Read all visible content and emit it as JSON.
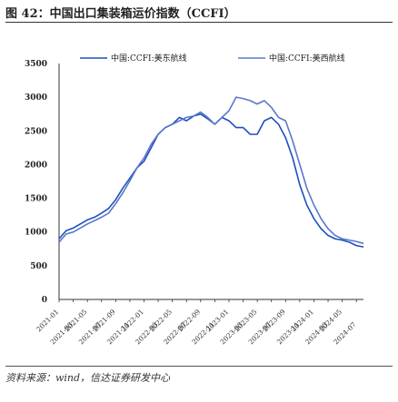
{
  "figure": {
    "title": "图 42：中国出口集装箱运价指数（CCFI）",
    "source": "资料来源：wind，信达证券研发中心"
  },
  "chart_data": {
    "type": "line",
    "title": "",
    "xlabel": "",
    "ylabel": "",
    "ylim": [
      0,
      3500
    ],
    "yticks": [
      "0",
      "500",
      "1000",
      "1500",
      "2000",
      "2500",
      "3000",
      "3500"
    ],
    "xtick_labels": [
      "2021-01",
      "2021-03",
      "2021-05",
      "2021-07",
      "2021-09",
      "2021-11",
      "2022-01",
      "2022-03",
      "2022-05",
      "2022-07",
      "2022-09",
      "2022-11",
      "2023-01",
      "2023-03",
      "2023-05",
      "2023-07",
      "2023-09",
      "2023-11",
      "2024-01",
      "2024-03",
      "2024-05",
      "2024-07"
    ],
    "grid": false,
    "legend_position": "top",
    "x": [
      "2021-01",
      "2021-02",
      "2021-03",
      "2021-04",
      "2021-05",
      "2021-06",
      "2021-07",
      "2021-08",
      "2021-09",
      "2021-10",
      "2021-11",
      "2021-12",
      "2022-01",
      "2022-02",
      "2022-03",
      "2022-04",
      "2022-05",
      "2022-06",
      "2022-07",
      "2022-08",
      "2022-09",
      "2022-10",
      "2022-11",
      "2022-12",
      "2023-01",
      "2023-02",
      "2023-03",
      "2023-04",
      "2023-05",
      "2023-06",
      "2023-07",
      "2023-08",
      "2023-09",
      "2023-10",
      "2023-11",
      "2023-12",
      "2024-01",
      "2024-02",
      "2024-03",
      "2024-04",
      "2024-05",
      "2024-06",
      "2024-07",
      "2024-08"
    ],
    "series": [
      {
        "name": "中国:CCFI:美东航线",
        "color": "#1f4fbf",
        "values": [
          900,
          1020,
          1060,
          1120,
          1180,
          1220,
          1280,
          1350,
          1480,
          1650,
          1800,
          1950,
          2050,
          2250,
          2450,
          2550,
          2600,
          2700,
          2650,
          2720,
          2750,
          2680,
          2600,
          2700,
          2650,
          2550,
          2550,
          2450,
          2450,
          2650,
          2700,
          2600,
          2400,
          2100,
          1700,
          1400,
          1200,
          1050,
          950,
          900,
          880,
          850,
          800,
          780
        ]
      },
      {
        "name": "中国:CCFI:美西航线",
        "color": "#5a78c8",
        "values": [
          850,
          970,
          1000,
          1060,
          1120,
          1170,
          1220,
          1280,
          1420,
          1580,
          1760,
          1950,
          2100,
          2300,
          2450,
          2550,
          2600,
          2650,
          2700,
          2720,
          2780,
          2700,
          2600,
          2700,
          2800,
          3000,
          2980,
          2950,
          2900,
          2950,
          2850,
          2700,
          2650,
          2350,
          2000,
          1650,
          1400,
          1200,
          1050,
          950,
          900,
          880,
          860,
          830
        ]
      }
    ]
  }
}
